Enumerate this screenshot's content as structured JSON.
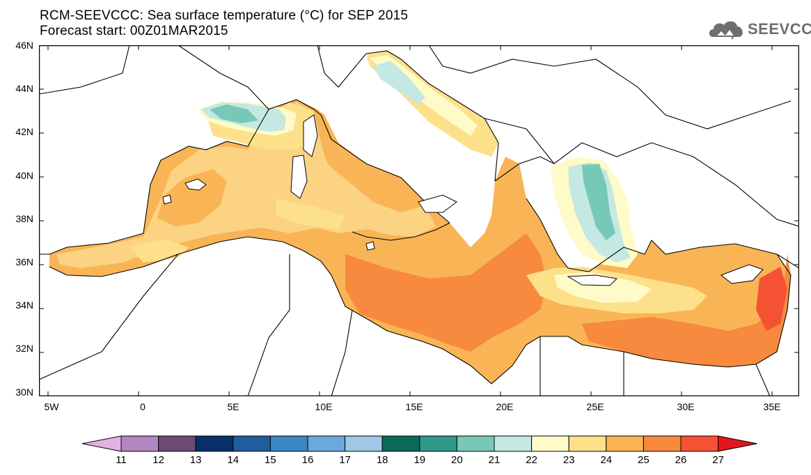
{
  "title_line1": "RCM-SEEVCCC: Sea surface temperature (°C) for SEP 2015",
  "title_line2": "Forecast start: 00Z01MAR2015",
  "logo_text": "SEEVCCC",
  "map": {
    "lon_range": [
      -5.5,
      36.5
    ],
    "lat_range": [
      30,
      46
    ],
    "lat_ticks": [
      "46N",
      "44N",
      "42N",
      "40N",
      "38N",
      "36N",
      "34N",
      "32N",
      "30N"
    ],
    "lon_ticks": [
      "5W",
      "0",
      "5E",
      "10E",
      "15E",
      "20E",
      "25E",
      "30E",
      "35E"
    ]
  },
  "colorbar": {
    "labels": [
      "11",
      "12",
      "13",
      "14",
      "15",
      "16",
      "17",
      "18",
      "19",
      "20",
      "21",
      "22",
      "23",
      "24",
      "25",
      "26",
      "27"
    ],
    "colors": [
      "#e3b4e3",
      "#b286c0",
      "#6c4b74",
      "#0a2f6b",
      "#1f5d9c",
      "#3b87c2",
      "#6aa9d9",
      "#9ec8e5",
      "#0a6b5a",
      "#2f9888",
      "#78c8b8",
      "#c4e8e2",
      "#fffbc8",
      "#fde08a",
      "#f9b456",
      "#f78a3e",
      "#f55234",
      "#e4151f"
    ]
  }
}
